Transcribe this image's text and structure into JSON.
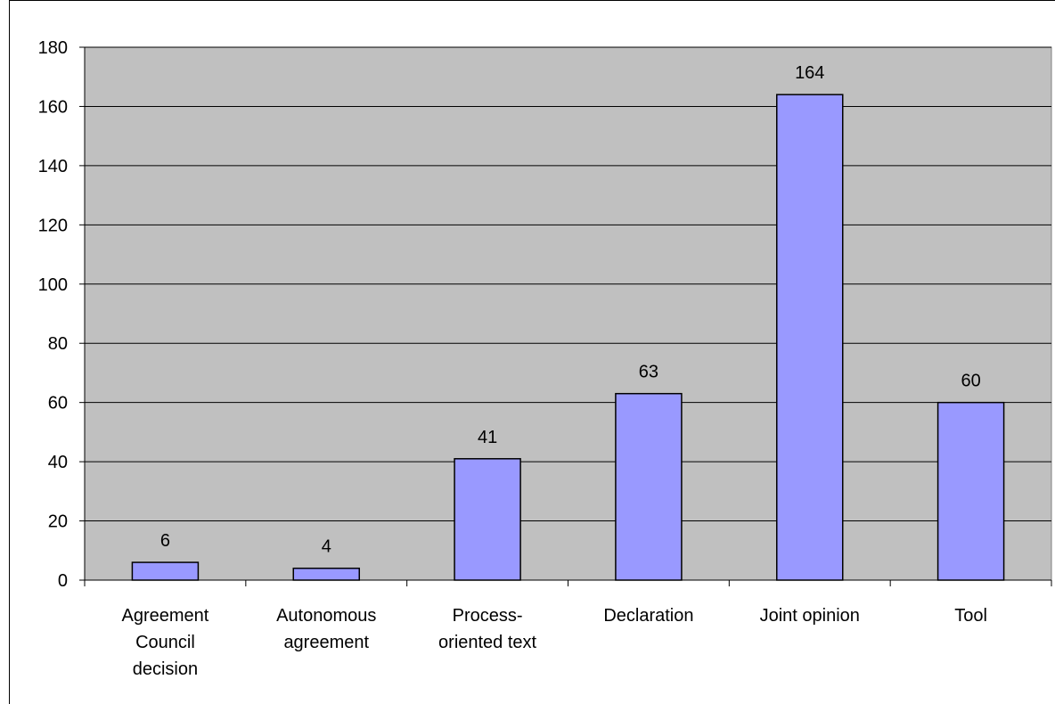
{
  "chart_data": {
    "type": "bar",
    "categories": [
      [
        "Agreement",
        "Council",
        "decision"
      ],
      [
        "Autonomous",
        "agreement"
      ],
      [
        "Process-",
        "oriented text"
      ],
      [
        "Declaration"
      ],
      [
        "Joint opinion"
      ],
      [
        "Tool"
      ]
    ],
    "values": [
      6,
      4,
      41,
      63,
      164,
      60
    ],
    "value_labels": [
      "6",
      "4",
      "41",
      "63",
      "164",
      "60"
    ],
    "ylim": [
      0,
      180
    ],
    "yticks": [
      0,
      20,
      40,
      60,
      80,
      100,
      120,
      140,
      160,
      180
    ],
    "title": "",
    "xlabel": "",
    "ylabel": "",
    "grid": true,
    "legend": "none",
    "colors": {
      "plot_background": "#c0c0c0",
      "bar_fill": "#9999ff",
      "bar_stroke": "#000000",
      "gridline": "#000000"
    }
  }
}
